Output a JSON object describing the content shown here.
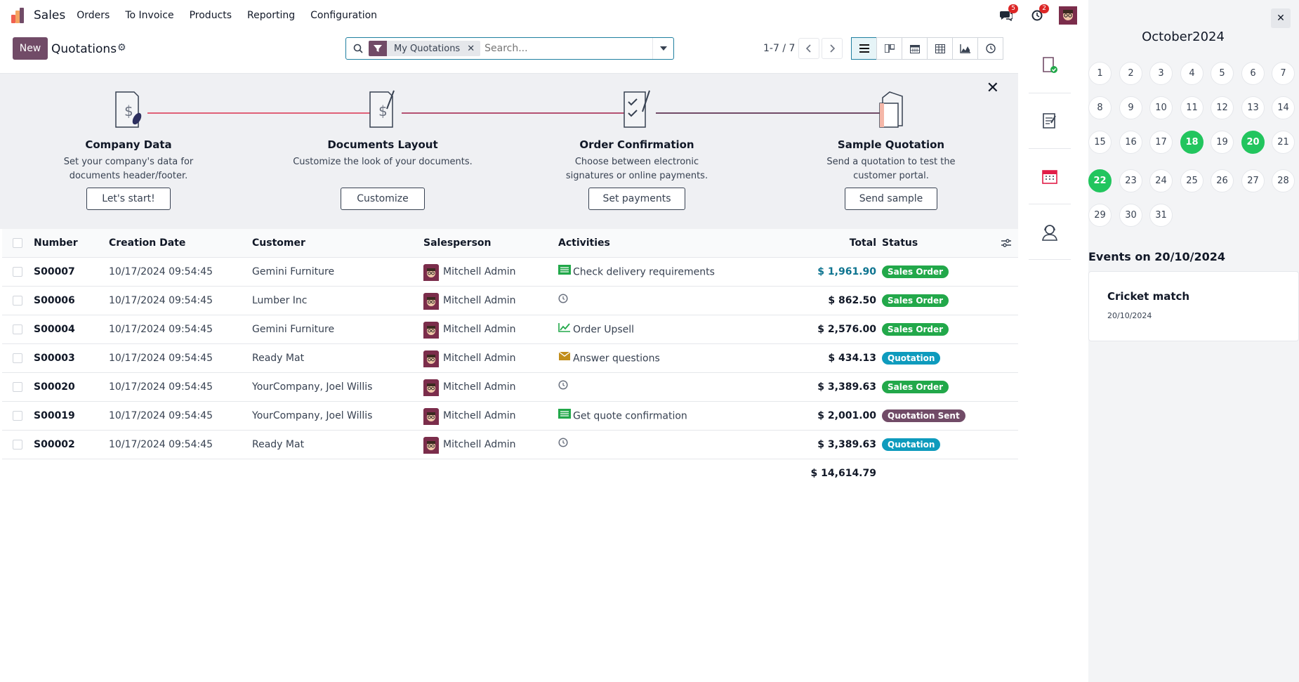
{
  "nav": {
    "app_name": "Sales",
    "menu": [
      "Orders",
      "To Invoice",
      "Products",
      "Reporting",
      "Configuration"
    ],
    "messages_badge": "5",
    "activities_badge": "2",
    "logo_colors": [
      "#f06050",
      "#f4a460",
      "#6cc1ed",
      "#714b67"
    ]
  },
  "control": {
    "new_label": "New",
    "title": "Quotations",
    "facet_label": "My Quotations",
    "search_placeholder": "Search...",
    "pager": "1-7 / 7"
  },
  "onboarding": {
    "steps": [
      {
        "title": "Company Data",
        "desc": "Set your company's data for documents header/footer.",
        "button": "Let's start!"
      },
      {
        "title": "Documents Layout",
        "desc": "Customize the look of your documents.",
        "button": "Customize"
      },
      {
        "title": "Order Confirmation",
        "desc": "Choose between electronic signatures or online payments.",
        "button": "Set payments"
      },
      {
        "title": "Sample Quotation",
        "desc": "Send a quotation to test the customer portal.",
        "button": "Send sample"
      }
    ]
  },
  "table": {
    "headers": {
      "number": "Number",
      "date": "Creation Date",
      "customer": "Customer",
      "salesperson": "Salesperson",
      "activities": "Activities",
      "total": "Total",
      "status": "Status"
    },
    "rows": [
      {
        "number": "S00007",
        "date": "10/17/2024 09:54:45",
        "customer": "Gemini Furniture",
        "salesperson": "Mitchell Admin",
        "activity": "Check delivery requirements",
        "activity_icon": "todo-list-icon",
        "total": "$ 1,961.90",
        "total_highlight": true,
        "status": "Sales Order"
      },
      {
        "number": "S00006",
        "date": "10/17/2024 09:54:45",
        "customer": "Lumber Inc",
        "salesperson": "Mitchell Admin",
        "activity": "",
        "activity_icon": "clock-icon",
        "total": "$ 862.50",
        "total_highlight": false,
        "status": "Sales Order"
      },
      {
        "number": "S00004",
        "date": "10/17/2024 09:54:45",
        "customer": "Gemini Furniture",
        "salesperson": "Mitchell Admin",
        "activity": "Order Upsell",
        "activity_icon": "trend-chart-icon",
        "total": "$ 2,576.00",
        "total_highlight": false,
        "status": "Sales Order"
      },
      {
        "number": "S00003",
        "date": "10/17/2024 09:54:45",
        "customer": "Ready Mat",
        "salesperson": "Mitchell Admin",
        "activity": "Answer questions",
        "activity_icon": "envelope-icon",
        "total": "$ 434.13",
        "total_highlight": false,
        "status": "Quotation"
      },
      {
        "number": "S00020",
        "date": "10/17/2024 09:54:45",
        "customer": "YourCompany, Joel Willis",
        "salesperson": "Mitchell Admin",
        "activity": "",
        "activity_icon": "clock-icon",
        "total": "$ 3,389.63",
        "total_highlight": false,
        "status": "Sales Order"
      },
      {
        "number": "S00019",
        "date": "10/17/2024 09:54:45",
        "customer": "YourCompany, Joel Willis",
        "salesperson": "Mitchell Admin",
        "activity": "Get quote confirmation",
        "activity_icon": "todo-list-icon",
        "total": "$ 2,001.00",
        "total_highlight": false,
        "status": "Quotation Sent"
      },
      {
        "number": "S00002",
        "date": "10/17/2024 09:54:45",
        "customer": "Ready Mat",
        "salesperson": "Mitchell Admin",
        "activity": "",
        "activity_icon": "clock-icon",
        "total": "$ 3,389.63",
        "total_highlight": false,
        "status": "Quotation"
      }
    ],
    "grand_total": "$ 14,614.79"
  },
  "status_colors": {
    "Sales Order": "#22a84a",
    "Quotation": "#0e9bbd",
    "Quotation Sent": "#714b67"
  },
  "calendar": {
    "month_label": "October2024",
    "days": [
      "1",
      "2",
      "3",
      "4",
      "5",
      "6",
      "7",
      "8",
      "9",
      "10",
      "11",
      "12",
      "13",
      "14",
      "15",
      "16",
      "17",
      "18",
      "19",
      "20",
      "21",
      "22",
      "23",
      "24",
      "25",
      "26",
      "27",
      "28",
      "29",
      "30",
      "31"
    ],
    "highlighted": [
      "18",
      "20",
      "22"
    ],
    "events_title": "Events on 20/10/2024",
    "event": {
      "name": "Cricket match",
      "date": "20/10/2024"
    }
  }
}
